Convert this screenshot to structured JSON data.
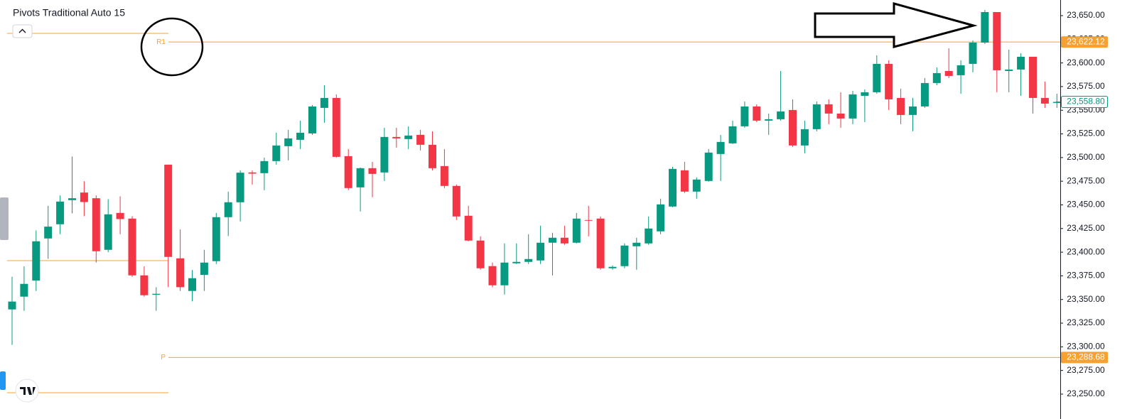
{
  "chart_data": {
    "type": "candlestick",
    "title": "Pivots Traditional Auto 15",
    "up_color": "#089981",
    "down_color": "#f23645",
    "pivot_color": "#f7a133",
    "ylim": [
      23223.7,
      23666.5
    ],
    "yticks": [
      {
        "value": 23250,
        "label": "23,250.00"
      },
      {
        "value": 23275,
        "label": "23,275.00"
      },
      {
        "value": 23300,
        "label": "23,300.00"
      },
      {
        "value": 23325,
        "label": "23,325.00"
      },
      {
        "value": 23350,
        "label": "23,350.00"
      },
      {
        "value": 23375,
        "label": "23,375.00"
      },
      {
        "value": 23400,
        "label": "23,400.00"
      },
      {
        "value": 23425,
        "label": "23,425.00"
      },
      {
        "value": 23450,
        "label": "23,450.00"
      },
      {
        "value": 23475,
        "label": "23,475.00"
      },
      {
        "value": 23500,
        "label": "23,500.00"
      },
      {
        "value": 23525,
        "label": "23,525.00"
      },
      {
        "value": 23550,
        "label": "23,550.00"
      },
      {
        "value": 23575,
        "label": "23,575.00"
      },
      {
        "value": 23600,
        "label": "23,600.00"
      },
      {
        "value": 23625,
        "label": "23,625.00"
      },
      {
        "value": 23650,
        "label": "23,650.00"
      }
    ],
    "pivots": [
      {
        "name": "R1",
        "value": 23622.12,
        "label": "23,622.12"
      },
      {
        "name": "P",
        "value": 23288.68,
        "label": "23,288.68"
      }
    ],
    "previous_pivots": [
      23631.2,
      23391.1,
      23251.5
    ],
    "last_price": {
      "value": 23558.8,
      "label": "23,558.80"
    },
    "ohlc": [
      [
        23339.5,
        23374,
        23302,
        23347.8
      ],
      [
        23353,
        23385,
        23338,
        23366.5
      ],
      [
        23370,
        23423,
        23359,
        23411.5
      ],
      [
        23414.5,
        23449,
        23393,
        23427
      ],
      [
        23429.5,
        23460,
        23419,
        23453.5
      ],
      [
        23455,
        23501,
        23441,
        23457
      ],
      [
        23463,
        23475,
        23438,
        23453
      ],
      [
        23457,
        23460,
        23389,
        23401
      ],
      [
        23402.5,
        23456,
        23400,
        23440
      ],
      [
        23441.5,
        23459,
        23419,
        23435
      ],
      [
        23435.5,
        23438,
        23374,
        23375.5
      ],
      [
        23375.5,
        23385,
        23353,
        23354.5
      ],
      [
        23355,
        23363,
        23338,
        23356
      ],
      [
        23492.5,
        23492.5,
        23363,
        23395
      ],
      [
        23393.5,
        23424,
        23359,
        23363
      ],
      [
        23359,
        23381,
        23348,
        23372.5
      ],
      [
        23376,
        23402.5,
        23359,
        23389
      ],
      [
        23390.5,
        23441.5,
        23387.5,
        23437
      ],
      [
        23437,
        23464,
        23417,
        23452.75
      ],
      [
        23452.75,
        23486.5,
        23432.5,
        23484
      ],
      [
        23484.25,
        23486.5,
        23471.5,
        23483
      ],
      [
        23483.5,
        23500,
        23465.5,
        23496.25
      ],
      [
        23496.25,
        23526.25,
        23492.5,
        23512.75
      ],
      [
        23512,
        23529.25,
        23497,
        23520.25
      ],
      [
        23518.75,
        23539,
        23509,
        23526.25
      ],
      [
        23525.5,
        23555.5,
        23524,
        23554
      ],
      [
        23552.5,
        23576.5,
        23536.75,
        23563
      ],
      [
        23563,
        23566.75,
        23500,
        23500.75
      ],
      [
        23501.5,
        23509,
        23465.5,
        23467.75
      ],
      [
        23468.5,
        23489.5,
        23443,
        23488.75
      ],
      [
        23488.75,
        23495.5,
        23458,
        23482.75
      ],
      [
        23484.25,
        23531.5,
        23475.25,
        23521.75
      ],
      [
        23521.75,
        23531.5,
        23510.5,
        23520.25
      ],
      [
        23519.5,
        23533,
        23509,
        23523.25
      ],
      [
        23524,
        23529.25,
        23507.5,
        23513.5
      ],
      [
        23513.5,
        23527.75,
        23486.5,
        23488.75
      ],
      [
        23491,
        23509,
        23467.75,
        23470
      ],
      [
        23470,
        23471.5,
        23434,
        23437.75
      ],
      [
        23438.5,
        23449,
        23411.5,
        23412.25
      ],
      [
        23412.25,
        23416.75,
        23381.5,
        23383
      ],
      [
        23385.25,
        23389,
        23362.75,
        23365
      ],
      [
        23365,
        23409.25,
        23355.25,
        23389
      ],
      [
        23388.25,
        23409.25,
        23387.5,
        23389.75
      ],
      [
        23389.75,
        23419,
        23387.5,
        23392.75
      ],
      [
        23391.25,
        23428,
        23387.5,
        23410
      ],
      [
        23410,
        23420.5,
        23375.5,
        23415.25
      ],
      [
        23415.25,
        23428,
        23407.75,
        23409.25
      ],
      [
        23410,
        23441.5,
        23409.25,
        23435.5
      ],
      [
        23434,
        23449,
        23416.75,
        23433.5
      ],
      [
        23435.5,
        23437.75,
        23381.5,
        23383
      ],
      [
        23383,
        23386,
        23381.5,
        23384.5
      ],
      [
        23385.25,
        23409.25,
        23383,
        23407
      ],
      [
        23406.25,
        23415.25,
        23381.5,
        23410
      ],
      [
        23409.25,
        23437.75,
        23407.75,
        23425
      ],
      [
        23422,
        23456.5,
        23419,
        23450.5
      ],
      [
        23448.25,
        23490.25,
        23447.5,
        23488
      ],
      [
        23486.5,
        23495.5,
        23462.5,
        23464
      ],
      [
        23464,
        23479,
        23456.5,
        23476.75
      ],
      [
        23475.25,
        23509,
        23474.5,
        23505.25
      ],
      [
        23503.75,
        23524,
        23475.25,
        23516.5
      ],
      [
        23515,
        23539,
        23514.25,
        23533
      ],
      [
        23533,
        23559.25,
        23531.5,
        23554
      ],
      [
        23554,
        23556.25,
        23537.5,
        23539
      ],
      [
        23539,
        23546.5,
        23524,
        23540.5
      ],
      [
        23540.5,
        23591.5,
        23539,
        23548.75
      ],
      [
        23550.25,
        23561.5,
        23511.25,
        23512.75
      ],
      [
        23512.75,
        23539,
        23504.5,
        23530
      ],
      [
        23530,
        23559.25,
        23527.75,
        23556.25
      ],
      [
        23556.25,
        23561.5,
        23535.25,
        23546.5
      ],
      [
        23546.5,
        23569,
        23531.5,
        23541.25
      ],
      [
        23541.25,
        23570.5,
        23535.25,
        23566.75
      ],
      [
        23565.25,
        23572,
        23537.5,
        23569
      ],
      [
        23569,
        23608,
        23567.5,
        23599
      ],
      [
        23599,
        23602.75,
        23550.25,
        23561.5
      ],
      [
        23563,
        23572.75,
        23535.25,
        23545
      ],
      [
        23545,
        23563,
        23527.75,
        23554
      ],
      [
        23554,
        23584,
        23552.5,
        23578.75
      ],
      [
        23578.75,
        23595.25,
        23576.5,
        23589.25
      ],
      [
        23591.5,
        23615.5,
        23584,
        23586.25
      ],
      [
        23587,
        23602.75,
        23567.5,
        23597.5
      ],
      [
        23599,
        23623.75,
        23590,
        23621.5
      ],
      [
        23621.5,
        23656,
        23620,
        23653.75
      ],
      [
        23653.75,
        23653.75,
        23569,
        23592.25
      ],
      [
        23591.5,
        23614,
        23569,
        23593
      ],
      [
        23593,
        23610.25,
        23565.25,
        23606.5
      ],
      [
        23606.5,
        23606.5,
        23546.5,
        23563
      ],
      [
        23563,
        23580.25,
        23552.5,
        23557
      ],
      [
        23557.75,
        23567.5,
        23552.5,
        23558.8
      ]
    ]
  }
}
